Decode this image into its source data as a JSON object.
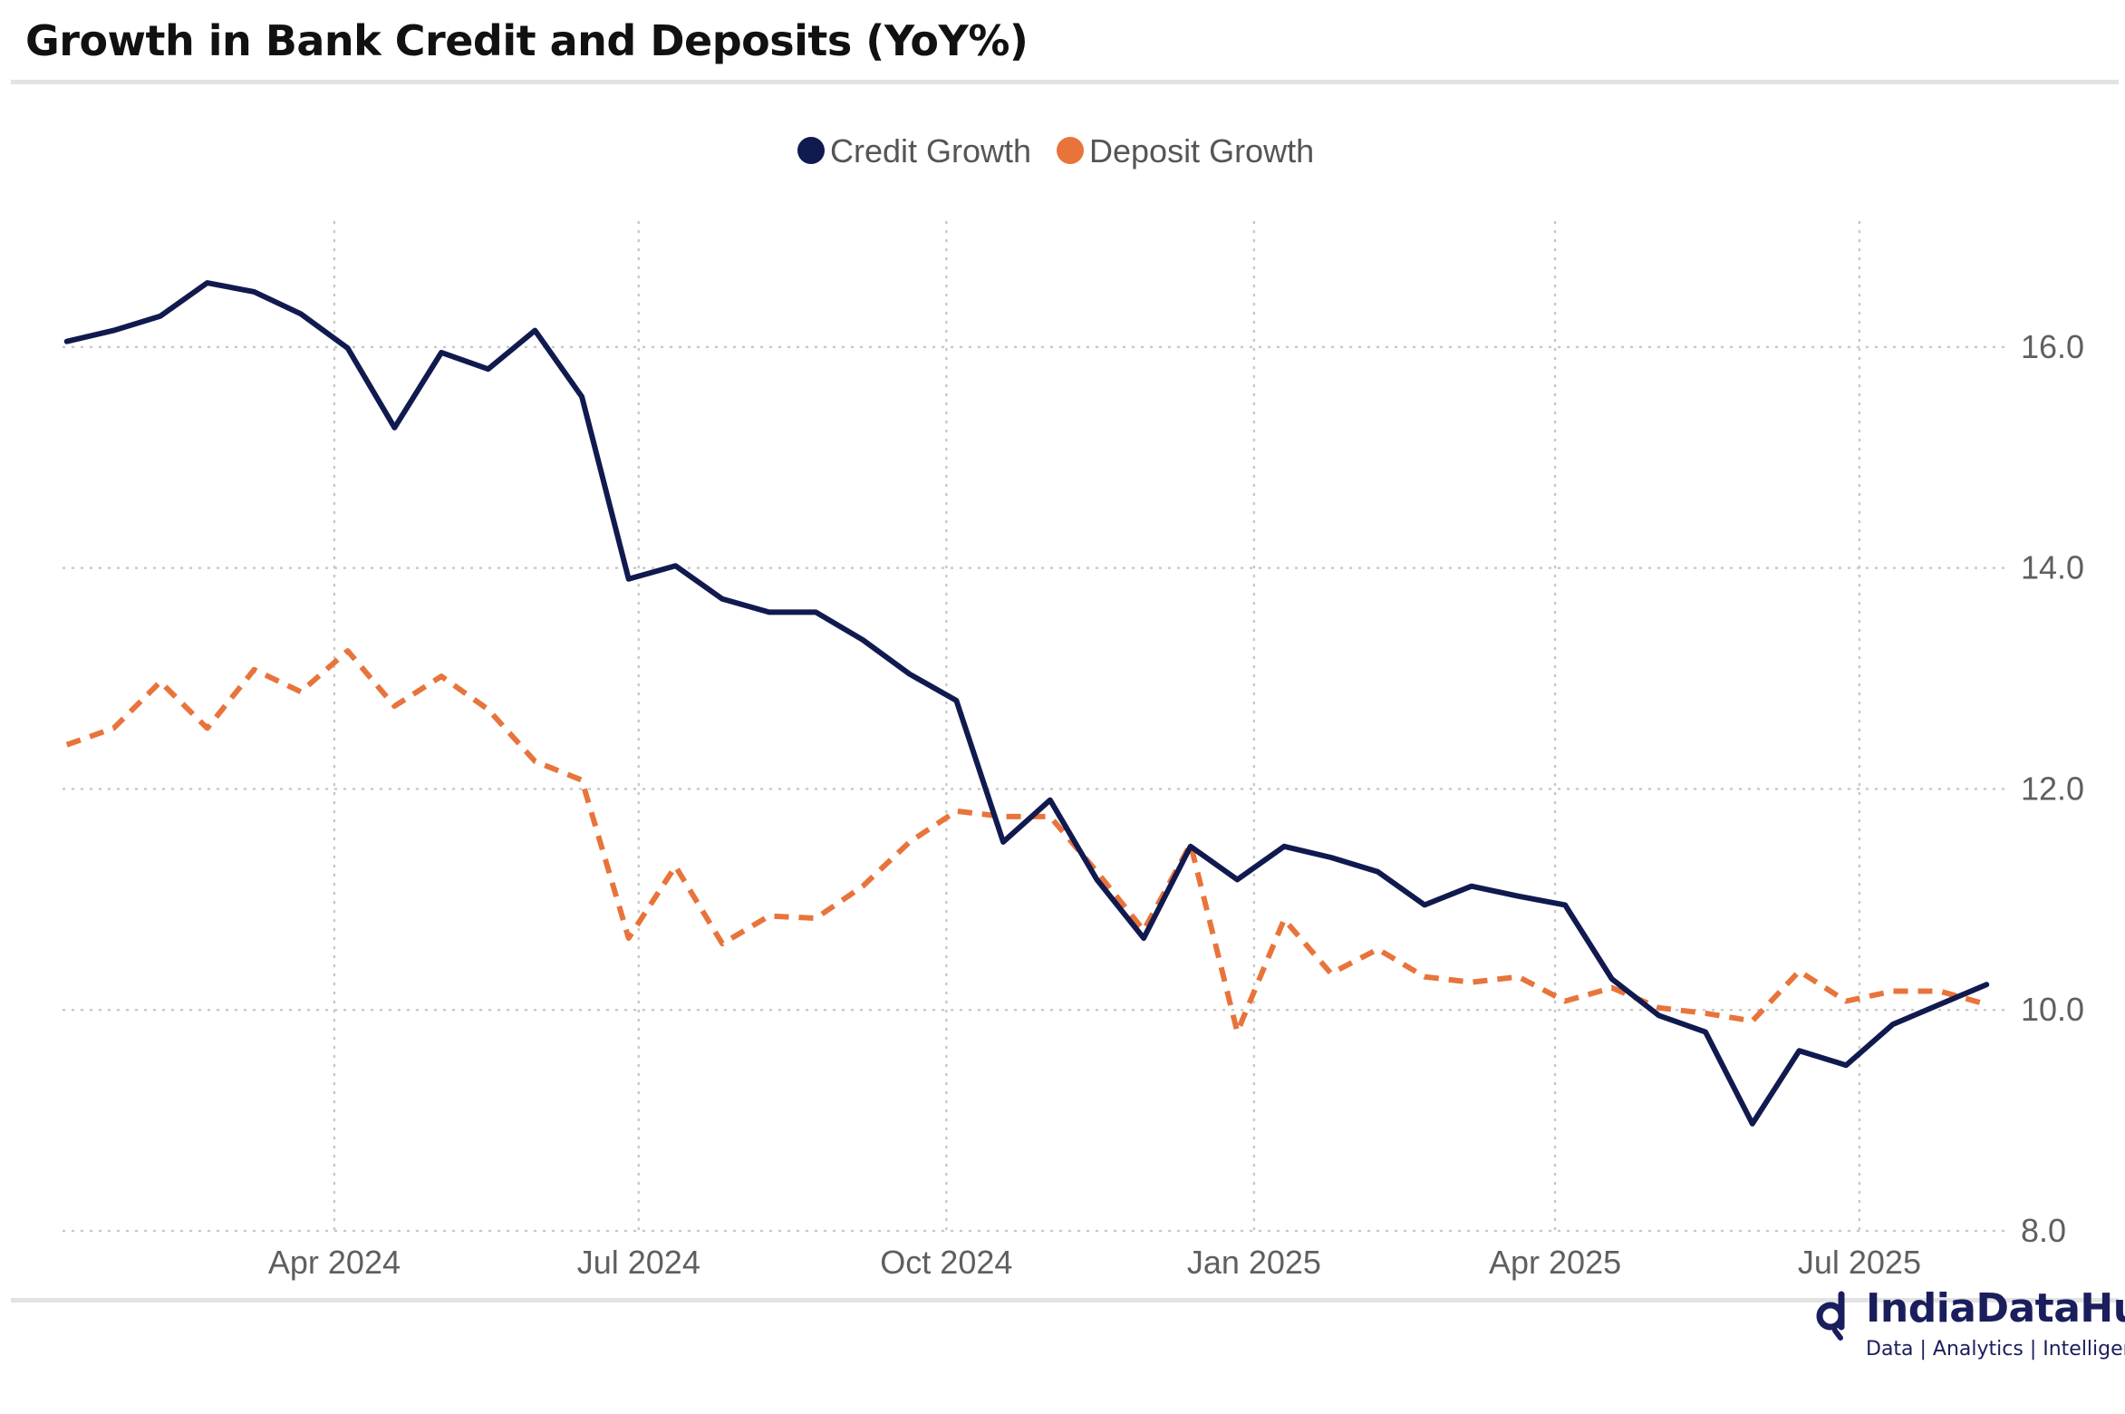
{
  "title": "Growth in Bank Credit and Deposits (YoY%)",
  "brand": {
    "name": "IndiaDataHub",
    "tagline": "Data | Analytics | Intelligence",
    "color": "#1b1e5c"
  },
  "chart_data": {
    "type": "line",
    "title": "Growth in Bank Credit and Deposits (YoY%)",
    "xlabel": "",
    "ylabel": "",
    "ylim": [
      8.0,
      17.5
    ],
    "yticks": [
      8.0,
      10.0,
      12.0,
      14.0,
      16.0
    ],
    "ytick_labels": [
      "8.0",
      "10.0",
      "12.0",
      "14.0",
      "16.0"
    ],
    "xlim": [
      "2024-01-11",
      "2025-08-15"
    ],
    "xticks": [
      "2024-04-01",
      "2024-07-01",
      "2024-10-01",
      "2025-01-01",
      "2025-04-01",
      "2025-07-01"
    ],
    "xtick_labels": [
      "Apr 2024",
      "Jul 2024",
      "Oct 2024",
      "Jan 2025",
      "Apr 2025",
      "Jul 2025"
    ],
    "y_axis_position": "right",
    "grid": "dotted",
    "legend_position": "top-center",
    "series": [
      {
        "name": "Credit Growth",
        "color": "#111a4f",
        "style": "solid",
        "points": [
          [
            "2024-01-12",
            16.05
          ],
          [
            "2024-01-26",
            16.15
          ],
          [
            "2024-02-09",
            16.28
          ],
          [
            "2024-02-23",
            16.58
          ],
          [
            "2024-03-08",
            16.5
          ],
          [
            "2024-03-22",
            16.3
          ],
          [
            "2024-04-05",
            15.99
          ],
          [
            "2024-04-19",
            15.27
          ],
          [
            "2024-05-03",
            15.95
          ],
          [
            "2024-05-17",
            15.8
          ],
          [
            "2024-05-31",
            16.15
          ],
          [
            "2024-06-14",
            15.55
          ],
          [
            "2024-06-28",
            13.9
          ],
          [
            "2024-07-12",
            14.02
          ],
          [
            "2024-07-26",
            13.72
          ],
          [
            "2024-08-09",
            13.6
          ],
          [
            "2024-08-23",
            13.6
          ],
          [
            "2024-09-06",
            13.35
          ],
          [
            "2024-09-20",
            13.04
          ],
          [
            "2024-10-04",
            12.8
          ],
          [
            "2024-10-18",
            11.52
          ],
          [
            "2024-11-01",
            11.9
          ],
          [
            "2024-11-15",
            11.18
          ],
          [
            "2024-11-29",
            10.65
          ],
          [
            "2024-12-13",
            11.48
          ],
          [
            "2024-12-27",
            11.18
          ],
          [
            "2025-01-10",
            11.48
          ],
          [
            "2025-01-24",
            11.38
          ],
          [
            "2025-02-07",
            11.25
          ],
          [
            "2025-02-21",
            10.95
          ],
          [
            "2025-03-07",
            11.12
          ],
          [
            "2025-03-21",
            11.03
          ],
          [
            "2025-04-04",
            10.95
          ],
          [
            "2025-04-18",
            10.28
          ],
          [
            "2025-05-02",
            9.95
          ],
          [
            "2025-05-16",
            9.8
          ],
          [
            "2025-05-30",
            8.97
          ],
          [
            "2025-06-13",
            9.63
          ],
          [
            "2025-06-27",
            9.5
          ],
          [
            "2025-07-11",
            9.87
          ],
          [
            "2025-07-25",
            10.05
          ],
          [
            "2025-08-08",
            10.23
          ]
        ]
      },
      {
        "name": "Deposit Growth",
        "color": "#e8743b",
        "style": "dashed",
        "points": [
          [
            "2024-01-12",
            12.4
          ],
          [
            "2024-01-26",
            12.55
          ],
          [
            "2024-02-09",
            12.97
          ],
          [
            "2024-02-23",
            12.55
          ],
          [
            "2024-03-08",
            13.08
          ],
          [
            "2024-03-22",
            12.88
          ],
          [
            "2024-04-05",
            13.25
          ],
          [
            "2024-04-19",
            12.75
          ],
          [
            "2024-05-03",
            13.02
          ],
          [
            "2024-05-17",
            12.72
          ],
          [
            "2024-05-31",
            12.25
          ],
          [
            "2024-06-14",
            12.08
          ],
          [
            "2024-06-28",
            10.65
          ],
          [
            "2024-07-12",
            11.3
          ],
          [
            "2024-07-26",
            10.6
          ],
          [
            "2024-08-09",
            10.85
          ],
          [
            "2024-08-23",
            10.83
          ],
          [
            "2024-09-06",
            11.12
          ],
          [
            "2024-09-20",
            11.52
          ],
          [
            "2024-10-04",
            11.8
          ],
          [
            "2024-10-18",
            11.75
          ],
          [
            "2024-11-01",
            11.75
          ],
          [
            "2024-11-15",
            11.25
          ],
          [
            "2024-11-29",
            10.72
          ],
          [
            "2024-12-13",
            11.5
          ],
          [
            "2024-12-27",
            9.8
          ],
          [
            "2025-01-10",
            10.82
          ],
          [
            "2025-01-24",
            10.33
          ],
          [
            "2025-02-07",
            10.55
          ],
          [
            "2025-02-21",
            10.3
          ],
          [
            "2025-03-07",
            10.25
          ],
          [
            "2025-03-21",
            10.3
          ],
          [
            "2025-04-04",
            10.08
          ],
          [
            "2025-04-18",
            10.2
          ],
          [
            "2025-05-02",
            10.02
          ],
          [
            "2025-05-16",
            9.97
          ],
          [
            "2025-05-30",
            9.9
          ],
          [
            "2025-06-13",
            10.35
          ],
          [
            "2025-06-27",
            10.08
          ],
          [
            "2025-07-11",
            10.17
          ],
          [
            "2025-07-25",
            10.17
          ],
          [
            "2025-08-08",
            10.05
          ]
        ]
      }
    ]
  }
}
